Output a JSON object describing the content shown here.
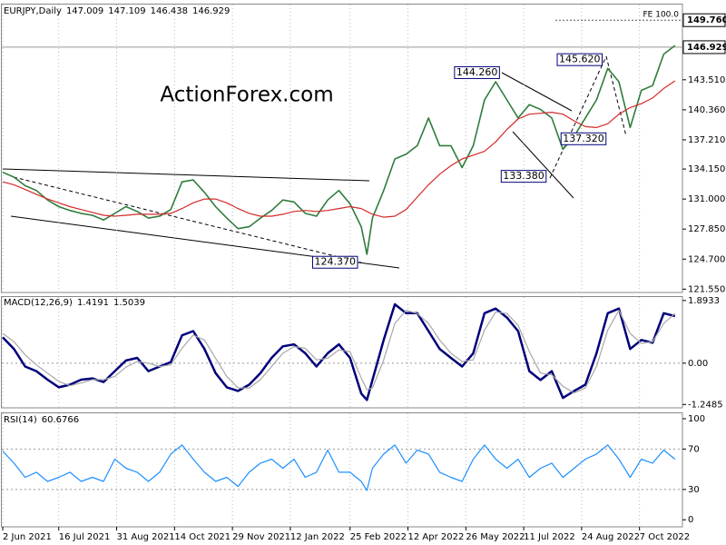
{
  "chart_data": [
    {
      "type": "line",
      "title": "EURJPY,Daily",
      "header_values": [
        147.009,
        147.109,
        146.438,
        146.929
      ],
      "watermark": "ActionForex.com",
      "grid": "x",
      "x": [
        0,
        6,
        12,
        18,
        24,
        30,
        36,
        42,
        48,
        54,
        60,
        66,
        72,
        78,
        84,
        90,
        96,
        102,
        108,
        114,
        120,
        126,
        132,
        138,
        144,
        150,
        156,
        162,
        168,
        174,
        180,
        186,
        192,
        195,
        198,
        204,
        210,
        216,
        222,
        228,
        234,
        240,
        246,
        252,
        258,
        264,
        270,
        276,
        282,
        288,
        294,
        300,
        306,
        312,
        318,
        324,
        330,
        336,
        342,
        348,
        354,
        360
      ],
      "xlim": [
        -0.5,
        364
      ],
      "ylim": [
        121.2,
        151.4
      ],
      "yticks": [
        {
          "value": 121.55,
          "label": "121.550"
        },
        {
          "value": 124.7,
          "label": "124.700"
        },
        {
          "value": 127.85,
          "label": "127.850"
        },
        {
          "value": 131,
          "label": "131.000"
        },
        {
          "value": 134.15,
          "label": "134.150"
        },
        {
          "value": 137.21,
          "label": "137.210"
        },
        {
          "value": 140.36,
          "label": "140.360"
        },
        {
          "value": 143.51,
          "label": "143.510"
        }
      ],
      "levels": [
        {
          "value": 149.76,
          "label": "149.760",
          "text": "FE 100.0"
        },
        146.929
      ],
      "annotations": [
        {
          "x": 266,
          "value": 144.26,
          "label": "144.260"
        },
        {
          "x": 321,
          "value": 145.62,
          "label": "145.620"
        },
        {
          "x": 299,
          "value": 137.32,
          "label": "137.320"
        },
        {
          "x": 291,
          "value": 133.38,
          "label": "133.380"
        },
        {
          "x": 190,
          "value": 124.37,
          "label": "124.370"
        }
      ],
      "series": [
        {
          "color": "#2f7d3c",
          "values": [
            133.8,
            133.3,
            132.4,
            131.9,
            130.9,
            130.2,
            129.8,
            129.5,
            129.3,
            128.8,
            129.5,
            130.2,
            129.7,
            129.0,
            129.2,
            129.9,
            132.8,
            133.0,
            131.7,
            130.2,
            129.0,
            127.9,
            128.1,
            129.0,
            129.8,
            130.9,
            130.7,
            129.5,
            129.2,
            130.9,
            131.9,
            130.5,
            128.1,
            125.2,
            129.0,
            131.9,
            135.2,
            135.7,
            136.6,
            139.5,
            136.6,
            136.6,
            134.3,
            136.6,
            141.4,
            143.3,
            141.4,
            139.5,
            140.9,
            140.4,
            139.5,
            136.2,
            137.6,
            139.5,
            141.4,
            144.7,
            143.3,
            138.5,
            142.4,
            142.9,
            146.2,
            147.1
          ]
        },
        {
          "color": "#d42a2a",
          "values": [
            132.8,
            132.5,
            132.0,
            131.5,
            131.0,
            130.6,
            130.2,
            129.9,
            129.6,
            129.3,
            129.2,
            129.3,
            129.4,
            129.4,
            129.4,
            129.5,
            130.0,
            130.6,
            131.0,
            131.0,
            130.6,
            130.0,
            129.5,
            129.2,
            129.2,
            129.4,
            129.7,
            129.8,
            129.7,
            129.8,
            130.0,
            130.2,
            130.0,
            129.7,
            129.4,
            129.1,
            129.2,
            129.9,
            131.2,
            132.5,
            133.6,
            134.5,
            135.2,
            135.6,
            136.0,
            137.0,
            138.3,
            139.4,
            139.9,
            140.0,
            140.1,
            139.9,
            139.2,
            138.6,
            138.5,
            138.9,
            139.9,
            140.6,
            141.0,
            141.6,
            142.6,
            143.4
          ]
        }
      ]
    },
    {
      "type": "line",
      "title": "MACD(12,26,9)",
      "header_values": [
        1.4191,
        1.5039
      ],
      "grid": "xy",
      "x": [
        0,
        6,
        12,
        18,
        24,
        30,
        36,
        42,
        48,
        54,
        60,
        66,
        72,
        78,
        84,
        90,
        96,
        102,
        108,
        114,
        120,
        126,
        132,
        138,
        144,
        150,
        156,
        162,
        168,
        174,
        180,
        186,
        192,
        195,
        198,
        204,
        210,
        216,
        222,
        228,
        234,
        240,
        246,
        252,
        258,
        264,
        270,
        276,
        282,
        288,
        294,
        300,
        306,
        312,
        318,
        324,
        330,
        336,
        342,
        348,
        354,
        360
      ],
      "xlim": [
        -0.5,
        364
      ],
      "ylim": [
        -1.35,
        2.0
      ],
      "yticks": [
        -1.2485,
        {
          "value": 0,
          "label": "0.00"
        },
        1.8933
      ],
      "series": [
        {
          "color": "#00007a",
          "values": [
            0.78,
            0.43,
            -0.1,
            -0.24,
            -0.5,
            -0.73,
            -0.65,
            -0.5,
            -0.46,
            -0.57,
            -0.24,
            0.08,
            0.16,
            -0.24,
            -0.1,
            0.03,
            0.84,
            0.97,
            0.43,
            -0.3,
            -0.73,
            -0.84,
            -0.65,
            -0.3,
            0.16,
            0.51,
            0.57,
            0.3,
            -0.1,
            0.3,
            0.57,
            0.16,
            -0.92,
            -1.11,
            -0.51,
            0.7,
            1.78,
            1.51,
            1.51,
            0.97,
            0.43,
            0.16,
            -0.1,
            0.3,
            1.51,
            1.65,
            1.38,
            0.97,
            -0.24,
            -0.51,
            -0.24,
            -1.05,
            -0.84,
            -0.65,
            0.3,
            1.51,
            1.65,
            0.43,
            0.7,
            0.62,
            1.51,
            1.42
          ]
        },
        {
          "color": "#a8a8a8",
          "values": [
            0.9,
            0.65,
            0.25,
            -0.05,
            -0.3,
            -0.55,
            -0.68,
            -0.6,
            -0.5,
            -0.5,
            -0.4,
            -0.12,
            0.05,
            0.0,
            -0.1,
            -0.05,
            0.45,
            0.85,
            0.7,
            0.15,
            -0.4,
            -0.75,
            -0.75,
            -0.5,
            -0.1,
            0.3,
            0.5,
            0.45,
            0.1,
            0.15,
            0.4,
            0.35,
            -0.45,
            -0.8,
            -0.75,
            0.1,
            1.2,
            1.6,
            1.5,
            1.2,
            0.7,
            0.3,
            0.05,
            0.1,
            1.0,
            1.55,
            1.5,
            1.15,
            0.35,
            -0.3,
            -0.35,
            -0.7,
            -0.9,
            -0.75,
            -0.1,
            1.0,
            1.6,
            0.9,
            0.6,
            0.65,
            1.2,
            1.5
          ]
        }
      ]
    },
    {
      "type": "line",
      "title": "RSI(14)",
      "header_values": [
        60.6766
      ],
      "grid": "xy",
      "x": [
        0,
        6,
        12,
        18,
        24,
        30,
        36,
        42,
        48,
        54,
        60,
        66,
        72,
        78,
        84,
        90,
        96,
        102,
        108,
        114,
        120,
        126,
        132,
        138,
        144,
        150,
        156,
        162,
        168,
        174,
        180,
        186,
        192,
        195,
        198,
        204,
        210,
        216,
        222,
        228,
        234,
        240,
        246,
        252,
        258,
        264,
        270,
        276,
        282,
        288,
        294,
        300,
        306,
        312,
        318,
        324,
        330,
        336,
        342,
        348,
        354,
        360
      ],
      "xlim": [
        -0.5,
        364
      ],
      "ylim": [
        -7,
        105.4
      ],
      "yticks": [
        0,
        30,
        70,
        100
      ],
      "xticks": [
        {
          "value": 0,
          "label": "2 Jun 2021"
        },
        {
          "value": 30,
          "label": "16 Jul 2021"
        },
        {
          "value": 61,
          "label": "31 Aug 2021"
        },
        {
          "value": 92,
          "label": "14 Oct 2021"
        },
        {
          "value": 123,
          "label": "29 Nov 2021"
        },
        {
          "value": 154,
          "label": "12 Jan 2022"
        },
        {
          "value": 186,
          "label": "25 Feb 2022"
        },
        {
          "value": 217,
          "label": "12 Apr 2022"
        },
        {
          "value": 248,
          "label": "26 May 2022"
        },
        {
          "value": 279,
          "label": "11 Jul 2022"
        },
        {
          "value": 310,
          "label": "24 Aug 2022"
        },
        {
          "value": 341,
          "label": "7 Oct 2022"
        }
      ],
      "series": [
        {
          "color": "#1e90ff",
          "values": [
            68,
            56,
            42,
            47,
            38,
            42,
            47,
            38,
            42,
            38,
            60,
            51,
            47,
            38,
            47,
            65,
            74,
            60,
            47,
            38,
            42,
            33,
            47,
            56,
            60,
            51,
            60,
            42,
            47,
            69,
            47,
            47,
            38,
            29,
            51,
            65,
            74,
            56,
            69,
            65,
            47,
            42,
            38,
            60,
            74,
            60,
            51,
            60,
            42,
            51,
            56,
            42,
            51,
            60,
            65,
            74,
            60,
            42,
            60,
            56,
            69,
            60
          ]
        }
      ]
    }
  ]
}
